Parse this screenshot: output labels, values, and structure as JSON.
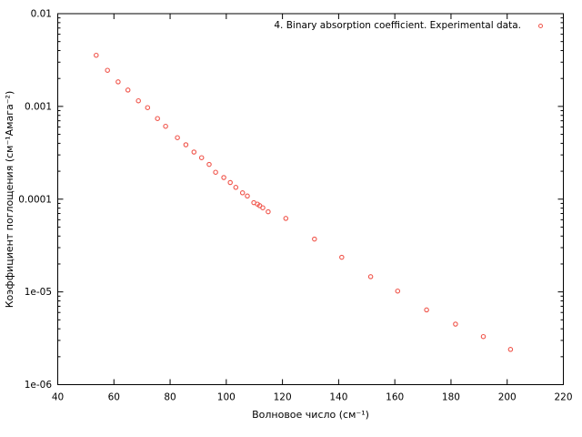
{
  "chart_data": {
    "type": "scatter",
    "title": "",
    "xlabel": "Волновое число (см⁻¹)",
    "ylabel": "Коэффициент поглощения (см⁻¹Амага⁻²)",
    "legend": {
      "label": "4. Binary absorption coefficient. Experimental data.",
      "position": "top-right-inside",
      "marker": "open-circle"
    },
    "grid": false,
    "x_axis": {
      "scale": "linear",
      "min": 40,
      "max": 220,
      "ticks": [
        40,
        60,
        80,
        100,
        120,
        140,
        160,
        180,
        200,
        220
      ]
    },
    "y_axis": {
      "scale": "log",
      "min": 1e-06,
      "max": 0.01,
      "tick_values": [
        0.01,
        0.001,
        0.0001,
        1e-05,
        1e-06
      ],
      "tick_labels": [
        "0.01",
        "0.001",
        "0.0001",
        "1e-05",
        "1e-06"
      ],
      "minor_ticks": true
    },
    "marker_color": "#f0544a",
    "axis_color": "#000000",
    "background_color": "#ffffff",
    "points": [
      [
        53.7,
        0.00356
      ],
      [
        57.7,
        0.00245
      ],
      [
        61.5,
        0.00184
      ],
      [
        65.0,
        0.0015
      ],
      [
        68.7,
        0.00115
      ],
      [
        72.0,
        0.00097
      ],
      [
        75.5,
        0.00074
      ],
      [
        78.4,
        0.00061
      ],
      [
        82.6,
        0.00046
      ],
      [
        85.6,
        0.000386
      ],
      [
        88.5,
        0.000322
      ],
      [
        91.2,
        0.00028
      ],
      [
        93.9,
        0.000237
      ],
      [
        96.2,
        0.000195
      ],
      [
        99.1,
        0.000171
      ],
      [
        101.4,
        0.000151
      ],
      [
        103.4,
        0.000134
      ],
      [
        105.8,
        0.000117
      ],
      [
        107.5,
        0.000108
      ],
      [
        109.8,
        9.16e-05
      ],
      [
        111.1,
        8.84e-05
      ],
      [
        111.9,
        8.5e-05
      ],
      [
        113.0,
        8.07e-05
      ],
      [
        114.9,
        7.31e-05
      ],
      [
        121.2,
        6.2e-05
      ],
      [
        131.4,
        3.71e-05
      ],
      [
        141.1,
        2.36e-05
      ],
      [
        151.4,
        1.46e-05
      ],
      [
        161.0,
        1.02e-05
      ],
      [
        171.3,
        6.4e-06
      ],
      [
        181.6,
        4.5e-06
      ],
      [
        191.5,
        3.3e-06
      ],
      [
        201.2,
        2.4e-06
      ]
    ]
  }
}
